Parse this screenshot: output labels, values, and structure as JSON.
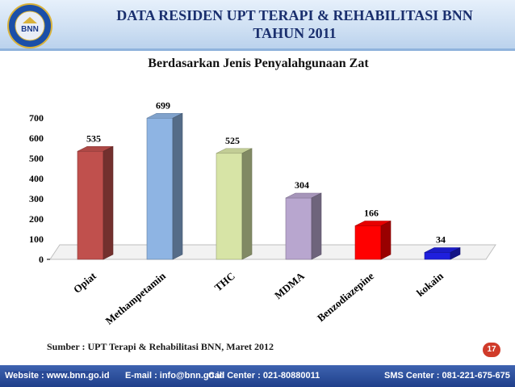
{
  "header": {
    "title_line1": "DATA RESIDEN UPT TERAPI & REHABILITASI BNN",
    "title_line2": "TAHUN 2011",
    "logo_text": "BNN",
    "logo_ring_text": "BADAN NARKOTIKA NASIONAL REPUBLIK INDONESIA"
  },
  "chart_data": {
    "type": "bar",
    "title": "Berdasarkan Jenis Penyalahgunaan Zat",
    "categories": [
      "Opiat",
      "Methampetamin",
      "THC",
      "MDMA",
      "Benzodiazepine",
      "kokain"
    ],
    "values": [
      535,
      699,
      525,
      304,
      166,
      34
    ],
    "colors": [
      "#c0504d",
      "#8eb4e3",
      "#d7e4a6",
      "#b8a6cf",
      "#ff0000",
      "#1f1fdd"
    ],
    "value_labels": [
      "535",
      "699",
      "525",
      "304",
      "166",
      "34"
    ],
    "ylim": [
      0,
      700
    ],
    "yticks": [
      "0",
      "100",
      "200",
      "300",
      "400",
      "500",
      "600",
      "700"
    ],
    "xlabel": "",
    "ylabel": "",
    "grid": false,
    "style": "3d"
  },
  "source": "Sumber : UPT Terapi & Rehabilitasi BNN, Maret 2012",
  "page_number": "17",
  "footer": {
    "website": "Website : www.bnn.go.id",
    "email": "E-mail : info@bnn.go.id",
    "call_center": "Call Center  :  021-80880011",
    "sms_center": "SMS Center : 081-221-675-675"
  }
}
